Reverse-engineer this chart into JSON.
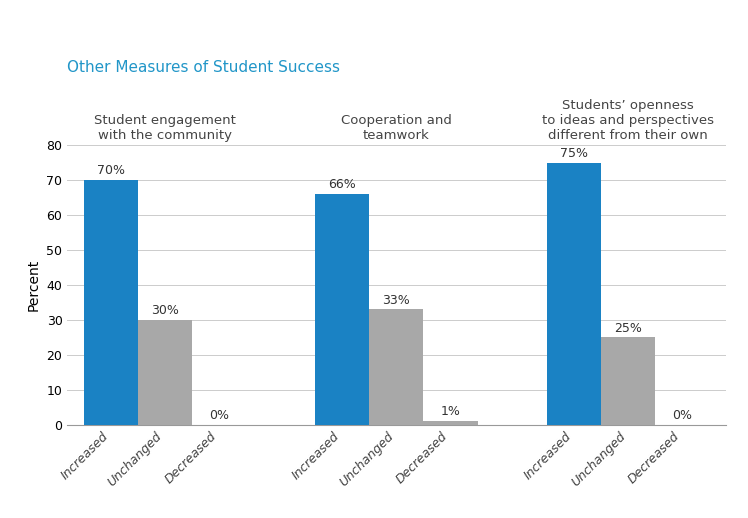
{
  "title": "Other Measures of Student Success",
  "title_color": "#2196C8",
  "ylabel": "Percent",
  "ylim": [
    0,
    80
  ],
  "yticks": [
    0,
    10,
    20,
    30,
    40,
    50,
    60,
    70,
    80
  ],
  "group_labels": [
    "Student engagement\nwith the community",
    "Cooperation and\nteamwork",
    "Students’ openness\nto ideas and perspectives\ndifferent from their own"
  ],
  "bar_labels": [
    "Increased",
    "Unchanged",
    "Decreased"
  ],
  "values": [
    [
      70,
      30,
      0
    ],
    [
      66,
      33,
      1
    ],
    [
      75,
      25,
      0
    ]
  ],
  "increased_color": "#1A82C4",
  "other_color": "#A8A8A8",
  "background_color": "#FFFFFF",
  "bar_width": 0.7,
  "title_fontsize": 11,
  "group_label_fontsize": 9.5,
  "ylabel_fontsize": 10,
  "tick_fontsize": 9,
  "value_label_fontsize": 9
}
